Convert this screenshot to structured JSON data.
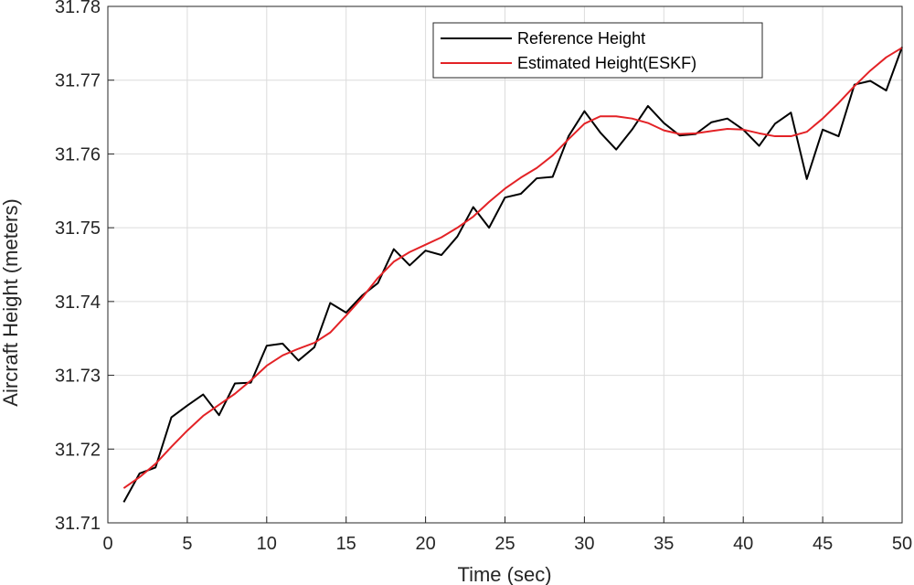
{
  "chart_data": {
    "type": "line",
    "xlabel": "Time (sec)",
    "ylabel": "Aircraft Height (meters)",
    "xlim": [
      0,
      50
    ],
    "ylim": [
      31.71,
      31.78
    ],
    "xticks": [
      0,
      5,
      10,
      15,
      20,
      25,
      30,
      35,
      40,
      45,
      50
    ],
    "yticks": [
      31.71,
      31.72,
      31.73,
      31.74,
      31.75,
      31.76,
      31.77,
      31.78
    ],
    "grid": true,
    "legend_position": "top-right",
    "x": [
      1,
      2,
      3,
      4,
      5,
      6,
      7,
      8,
      9,
      10,
      11,
      12,
      13,
      14,
      15,
      16,
      17,
      18,
      19,
      20,
      21,
      22,
      23,
      24,
      25,
      26,
      27,
      28,
      29,
      30,
      31,
      32,
      33,
      34,
      35,
      36,
      37,
      38,
      39,
      40,
      41,
      42,
      43,
      44,
      45,
      46,
      47,
      48,
      49,
      50
    ],
    "series": [
      {
        "name": "Reference Height",
        "color": "#000000",
        "values": [
          31.7128,
          31.7167,
          31.7175,
          31.7243,
          31.7259,
          31.7274,
          31.7246,
          31.7289,
          31.729,
          31.734,
          31.7343,
          31.732,
          31.7338,
          31.7398,
          31.7385,
          31.7408,
          31.7425,
          31.7471,
          31.7449,
          31.7469,
          31.7463,
          31.7488,
          31.7528,
          31.75,
          31.7541,
          31.7546,
          31.7567,
          31.7569,
          31.7624,
          31.7658,
          31.7629,
          31.7606,
          31.7633,
          31.7665,
          31.7642,
          31.7625,
          31.7627,
          31.7643,
          31.7648,
          31.7633,
          31.7611,
          31.7641,
          31.7656,
          31.7566,
          31.7633,
          31.7624,
          31.7694,
          31.7699,
          31.7686,
          31.7745
        ]
      },
      {
        "name": "Estimated Height(ESKF)",
        "color": "#e32226",
        "values": [
          31.7147,
          31.7162,
          31.718,
          31.7203,
          31.7225,
          31.7245,
          31.726,
          31.7275,
          31.7293,
          31.7313,
          31.7327,
          31.7336,
          31.7344,
          31.7358,
          31.7381,
          31.7405,
          31.7432,
          31.7454,
          31.7467,
          31.7477,
          31.7487,
          31.75,
          31.7515,
          31.7535,
          31.7553,
          31.7568,
          31.7581,
          31.7598,
          31.762,
          31.7641,
          31.7651,
          31.7651,
          31.7648,
          31.7642,
          31.7632,
          31.7627,
          31.7628,
          31.7631,
          31.7634,
          31.7633,
          31.7628,
          31.7624,
          31.7624,
          31.763,
          31.7648,
          31.7669,
          31.7692,
          31.7713,
          31.7731,
          31.7744
        ]
      }
    ]
  }
}
